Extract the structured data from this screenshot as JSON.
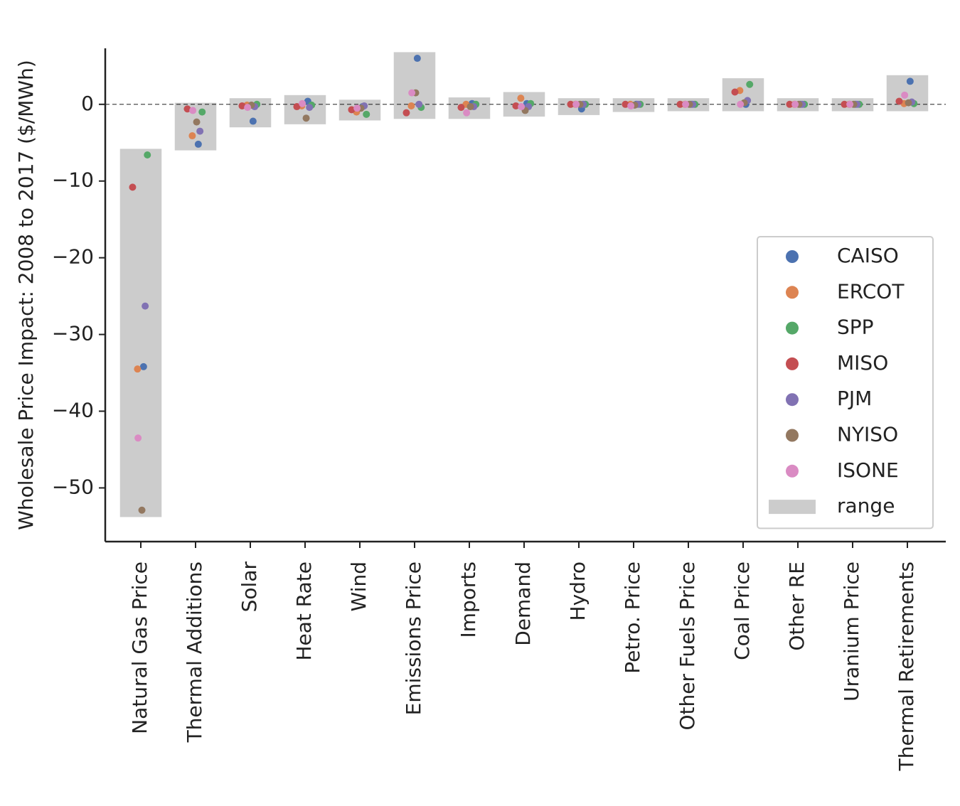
{
  "chart_data": {
    "type": "strip",
    "y_label": "Wholesale Price Impact: 2008 to 2017 ($/MWh)",
    "categories": [
      "Natural Gas Price",
      "Thermal Additions",
      "Solar",
      "Heat Rate",
      "Wind",
      "Emissions Price",
      "Imports",
      "Demand",
      "Hydro",
      "Petro. Price",
      "Other Fuels Price",
      "Coal Price",
      "Other RE",
      "Uranium Price",
      "Thermal Retirements"
    ],
    "series": [
      {
        "name": "CAISO",
        "color": "#4c72b0",
        "values": [
          -34.2,
          -5.2,
          -2.2,
          0.4,
          -0.3,
          6.0,
          0.1,
          0.1,
          -0.6,
          0.0,
          0.0,
          0.0,
          0.0,
          0.0,
          3.0
        ]
      },
      {
        "name": "ERCOT",
        "color": "#dd8452",
        "values": [
          -34.5,
          -4.1,
          -0.1,
          -0.2,
          -1.0,
          -0.2,
          0.0,
          0.8,
          0.0,
          0.0,
          0.0,
          1.8,
          0.0,
          0.0,
          0.1
        ]
      },
      {
        "name": "SPP",
        "color": "#55a868",
        "values": [
          -6.6,
          -1.0,
          0.0,
          -0.1,
          -1.3,
          -0.4,
          0.0,
          0.1,
          0.0,
          0.0,
          0.0,
          2.6,
          0.0,
          0.0,
          0.1
        ]
      },
      {
        "name": "MISO",
        "color": "#c44e52",
        "values": [
          -10.8,
          -0.6,
          -0.2,
          -0.3,
          -0.7,
          -1.1,
          -0.4,
          -0.2,
          0.0,
          0.0,
          0.0,
          1.6,
          0.0,
          0.0,
          0.4
        ]
      },
      {
        "name": "PJM",
        "color": "#8172b3",
        "values": [
          -26.3,
          -3.5,
          -0.3,
          -0.4,
          -0.2,
          0.0,
          -0.3,
          -0.3,
          0.0,
          0.0,
          0.0,
          0.5,
          0.0,
          0.0,
          0.3
        ]
      },
      {
        "name": "NYISO",
        "color": "#937860",
        "values": [
          -52.9,
          -2.3,
          -0.1,
          -1.8,
          -0.5,
          1.5,
          -0.3,
          -0.8,
          0.0,
          -0.1,
          0.0,
          0.2,
          0.0,
          0.0,
          0.2
        ]
      },
      {
        "name": "ISONE",
        "color": "#da8bc3",
        "values": [
          -43.5,
          -0.8,
          -0.4,
          0.1,
          -0.5,
          1.5,
          -1.1,
          -0.3,
          0.0,
          -0.2,
          0.0,
          0.0,
          0.0,
          0.0,
          1.2
        ]
      }
    ],
    "range": {
      "name": "range",
      "color": "#cccccc",
      "low": [
        -53.8,
        -6.0,
        -3.0,
        -2.6,
        -2.1,
        -1.9,
        -1.9,
        -1.6,
        -1.4,
        -1.0,
        -0.9,
        -0.9,
        -0.9,
        -0.9,
        -0.9
      ],
      "high": [
        -5.8,
        0.2,
        0.8,
        1.2,
        0.6,
        6.8,
        0.9,
        1.6,
        0.8,
        0.8,
        0.8,
        3.4,
        0.8,
        0.8,
        3.8
      ]
    },
    "zero_line": 0,
    "ylim": [
      -57,
      7.3
    ],
    "yticks": [
      {
        "value": -50,
        "label": "−50"
      },
      {
        "value": -40,
        "label": "−40"
      },
      {
        "value": -30,
        "label": "−30"
      },
      {
        "value": -20,
        "label": "−20"
      },
      {
        "value": -10,
        "label": "−10"
      },
      0
    ],
    "legend": "center right"
  }
}
